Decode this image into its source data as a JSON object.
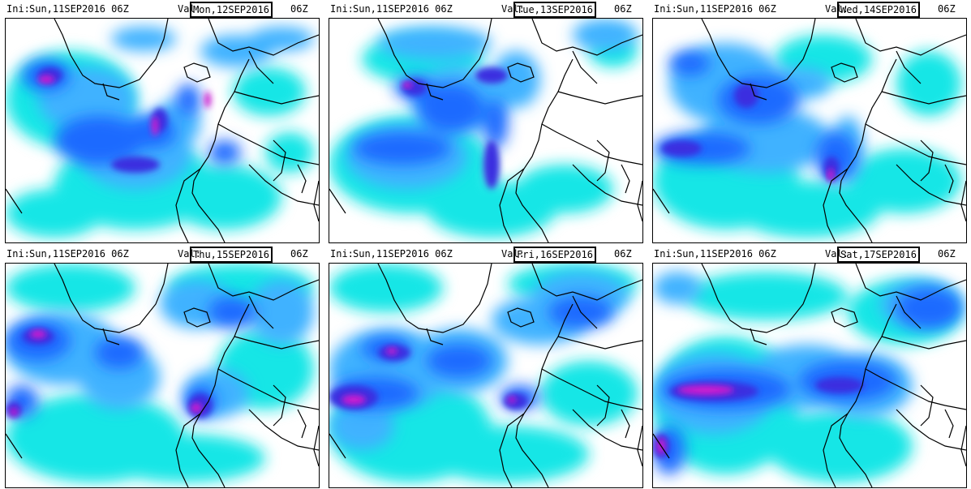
{
  "ini_label": "Ini:",
  "val_label": "Val:",
  "panels": [
    {
      "ini": "Sun,11SEP2016 06Z",
      "valid": "Mon,12SEP2016",
      "hour": "06Z"
    },
    {
      "ini": "Sun,11SEP2016 06Z",
      "valid": "Tue,13SEP2016",
      "hour": "06Z"
    },
    {
      "ini": "Sun,11SEP2016 06Z",
      "valid": "Wed,14SEP2016",
      "hour": "06Z"
    },
    {
      "ini": "Sun,11SEP2016 06Z",
      "valid": "Thu,15SEP2016",
      "hour": "06Z"
    },
    {
      "ini": "Sun,11SEP2016 06Z",
      "valid": "Fri,16SEP2016",
      "hour": "06Z"
    },
    {
      "ini": "Sun,11SEP2016 06Z",
      "valid": "Sat,17SEP2016",
      "hour": "06Z"
    }
  ],
  "colors": {
    "cyan": "#19e6e6",
    "light_blue": "#3fb2ff",
    "blue": "#1f6bff",
    "deep_blue": "#3b2fe0",
    "violet": "#8a1cd8",
    "magenta": "#d21ccf",
    "coast": "#000000",
    "background": "#ffffff"
  }
}
